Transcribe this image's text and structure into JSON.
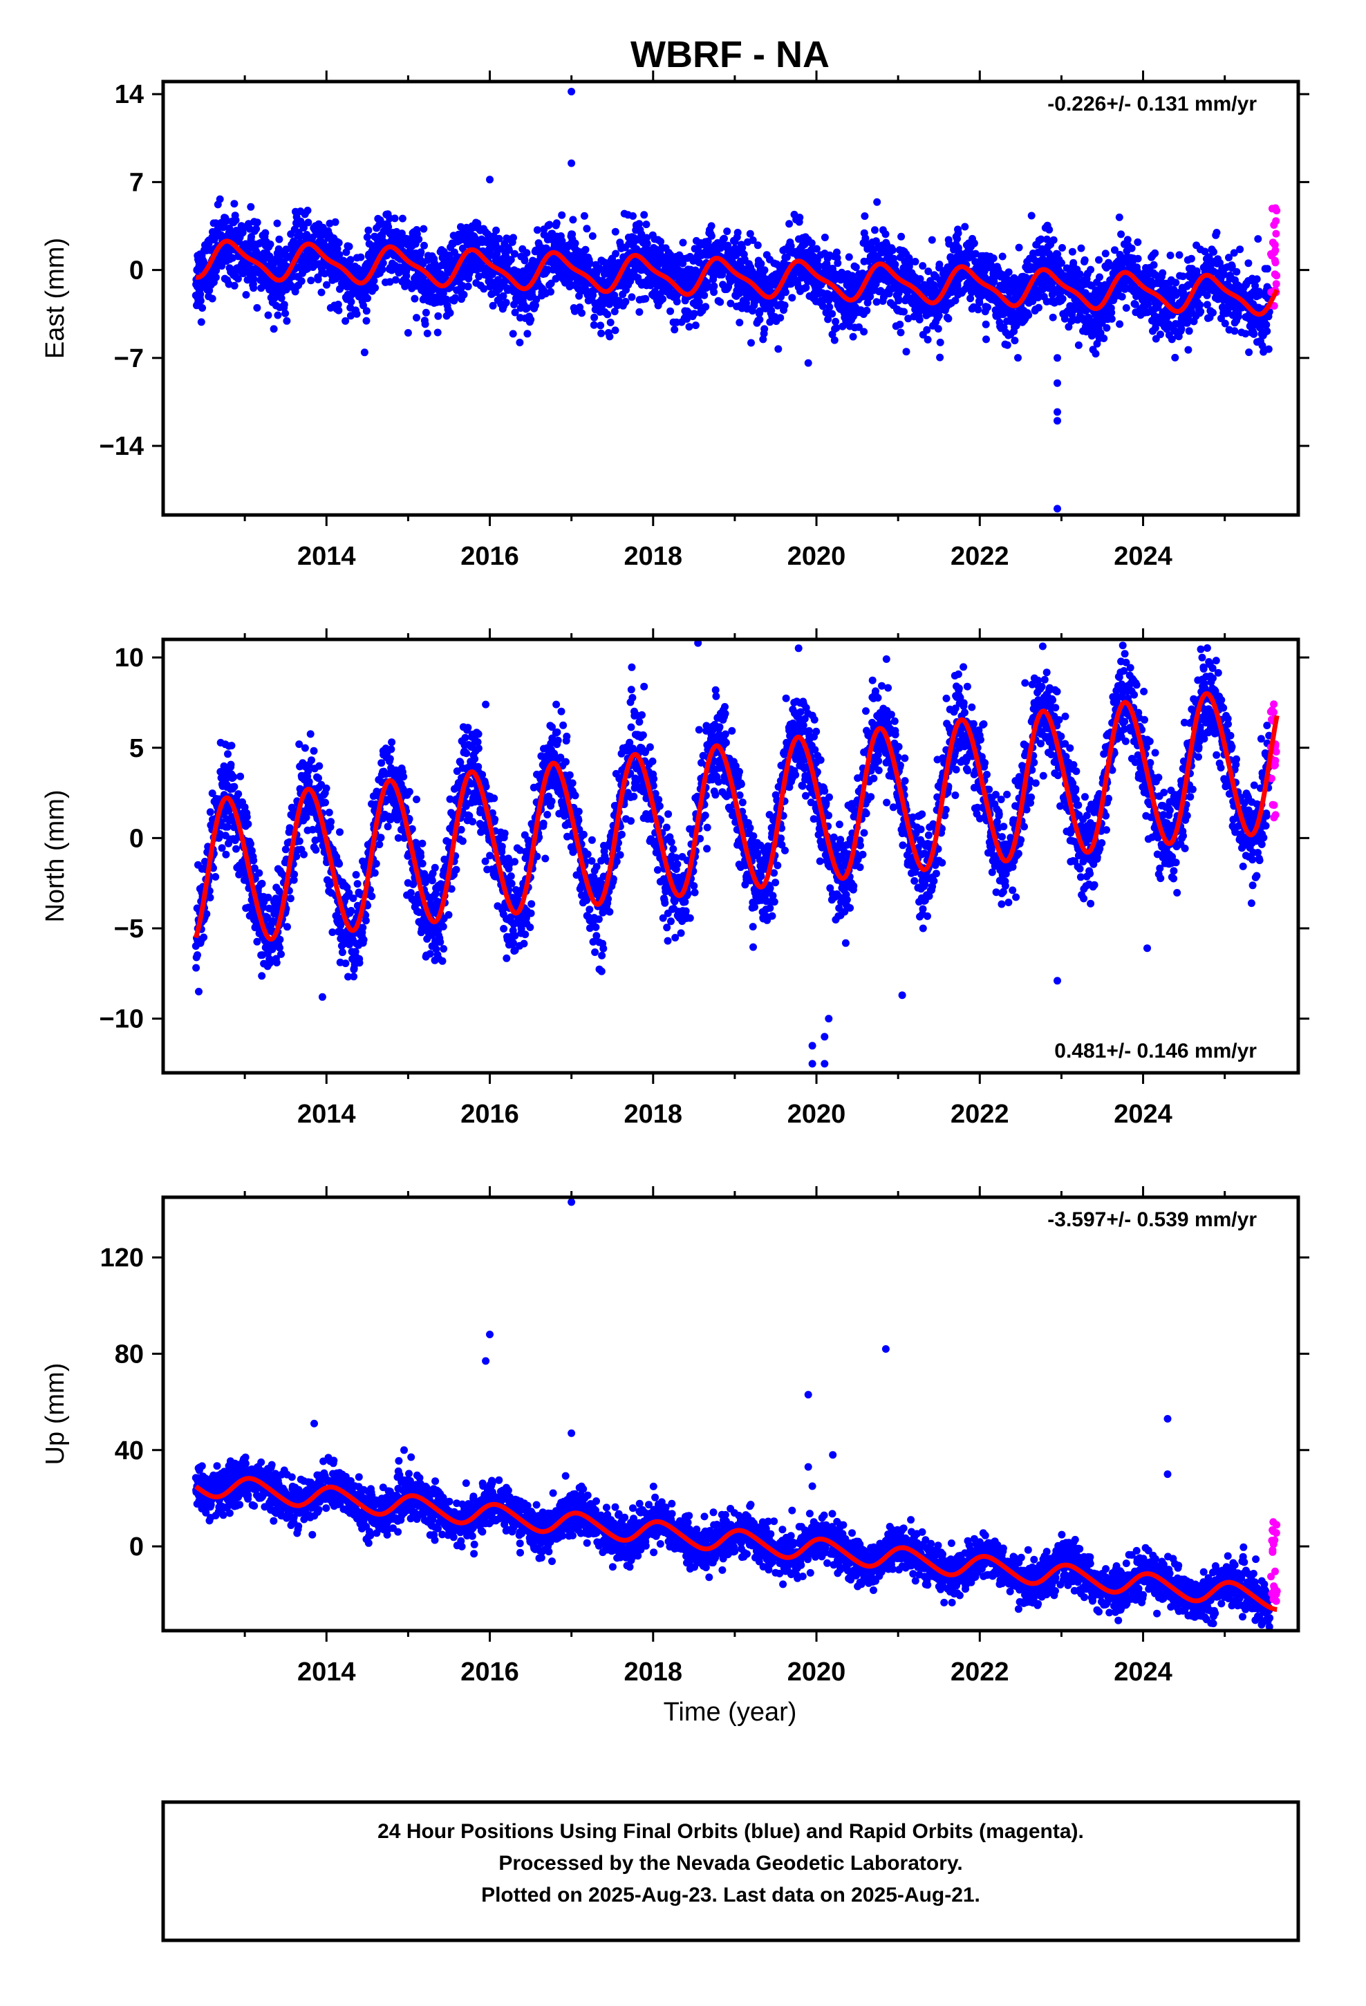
{
  "chart_data": {
    "title": "WBRF - NA",
    "type": "scatter",
    "xlabel": "Time (year)",
    "x_ticks": [
      "2014",
      "2016",
      "2018",
      "2020",
      "2022",
      "2024"
    ],
    "xlim": [
      2012.0,
      2025.9
    ],
    "colors": {
      "final": "#0000ff",
      "rapid": "#ff00ff",
      "model": "#ff0000"
    },
    "panels": [
      {
        "name": "east",
        "ylabel": "East (mm)",
        "rate_text": "-0.226+/- 0.131 mm/yr",
        "rate_position": "top-right",
        "ylim": [
          -19.5,
          15
        ],
        "y_ticks": [
          "14",
          "7",
          "0",
          "−7",
          "−14"
        ],
        "y_tick_values": [
          14,
          7,
          0,
          -7,
          -14
        ],
        "model": {
          "intercept": 0.9,
          "slope": -0.226,
          "amplitude": 1.3,
          "phase_year": 0.6,
          "semiannual_amp": 0.4
        },
        "final_series_extent": [
          2012.4,
          2025.55
        ],
        "rapid_series_extent": [
          2025.56,
          2025.64
        ],
        "rapid_range": [
          -3,
          5
        ],
        "outliers": [
          [
            2017.0,
            14.2
          ],
          [
            2017.0,
            8.5
          ],
          [
            2016.0,
            7.2
          ],
          [
            2019.9,
            -7.4
          ],
          [
            2022.95,
            -19.0
          ],
          [
            2022.95,
            -12.0
          ],
          [
            2022.95,
            -11.3
          ],
          [
            2022.95,
            -9.0
          ],
          [
            2022.95,
            -7.0
          ],
          [
            2015.0,
            -5.0
          ],
          [
            2019.2,
            -5.8
          ],
          [
            2021.1,
            -6.5
          ]
        ]
      },
      {
        "name": "north",
        "ylabel": "North (mm)",
        "rate_text": "0.481+/- 0.146 mm/yr",
        "rate_position": "bottom-right",
        "ylim": [
          -13,
          11
        ],
        "y_ticks": [
          "10",
          "5",
          "0",
          "−5",
          "−10"
        ],
        "y_tick_values": [
          10,
          5,
          0,
          -5,
          -10
        ],
        "model": {
          "intercept": -2.0,
          "slope": 0.481,
          "amplitude": 4.0,
          "phase_year": 0.55,
          "semiannual_amp": 0.3
        },
        "final_series_extent": [
          2012.4,
          2025.55
        ],
        "rapid_series_extent": [
          2025.56,
          2025.64
        ],
        "rapid_range": [
          1,
          8
        ],
        "outliers": [
          [
            2018.55,
            10.8
          ],
          [
            2015.95,
            7.4
          ],
          [
            2019.95,
            -11.5
          ],
          [
            2019.95,
            -12.5
          ],
          [
            2020.1,
            -12.5
          ],
          [
            2020.15,
            -10.0
          ],
          [
            2020.1,
            -11.0
          ],
          [
            2013.95,
            -8.8
          ],
          [
            2021.05,
            -8.7
          ],
          [
            2022.95,
            -7.9
          ],
          [
            2024.05,
            -6.1
          ]
        ]
      },
      {
        "name": "up",
        "ylabel": "Up (mm)",
        "rate_text": "-3.597+/- 0.539 mm/yr",
        "rate_position": "top-right",
        "ylim": [
          -35,
          145
        ],
        "y_ticks": [
          "120",
          "80",
          "40",
          "0"
        ],
        "y_tick_values": [
          120,
          80,
          40,
          0
        ],
        "model": {
          "intercept": 26.0,
          "slope": -3.597,
          "amplitude": 4.5,
          "phase_year": 0.85,
          "semiannual_amp": 0.5
        },
        "final_series_extent": [
          2012.4,
          2025.55
        ],
        "rapid_series_extent": [
          2025.56,
          2025.64
        ],
        "rapid_range": [
          -26,
          11
        ],
        "outliers": [
          [
            2017.0,
            143
          ],
          [
            2016.0,
            88
          ],
          [
            2015.95,
            77
          ],
          [
            2020.85,
            82
          ],
          [
            2019.9,
            63
          ],
          [
            2020.2,
            38
          ],
          [
            2024.3,
            53
          ],
          [
            2024.3,
            30
          ],
          [
            2013.85,
            51
          ],
          [
            2017.0,
            47
          ],
          [
            2014.95,
            40
          ],
          [
            2019.9,
            33
          ],
          [
            2019.95,
            25
          ]
        ]
      }
    ]
  },
  "footer": {
    "line1": "24 Hour Positions Using Final Orbits (blue) and Rapid Orbits (magenta).",
    "line2": "Processed by the Nevada Geodetic Laboratory.",
    "line3": "Plotted on 2025-Aug-23. Last data on 2025-Aug-21."
  }
}
